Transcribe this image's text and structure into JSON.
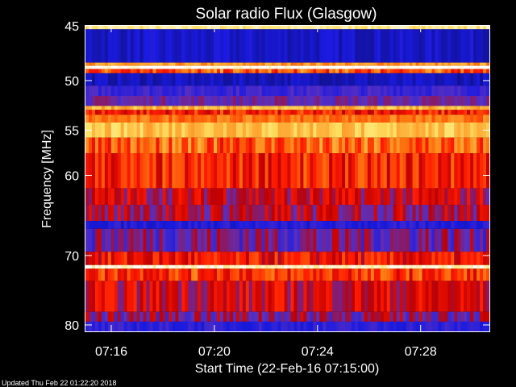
{
  "chart_data": {
    "type": "heatmap",
    "title": "Solar radio Flux (Glasgow)",
    "xlabel": "Start Time (22-Feb-16 07:15:00)",
    "ylabel": "Frequency [MHz]",
    "x_unit": "time",
    "x_range": [
      "07:15:00",
      "07:30:40"
    ],
    "x_ticks": [
      "07:16",
      "07:20",
      "07:24",
      "07:28"
    ],
    "y_range": [
      45,
      81
    ],
    "y_scale": "log",
    "y_inverted": true,
    "y_ticks": [
      45,
      50,
      55,
      60,
      70,
      80
    ],
    "colormap": [
      "#10108a",
      "#1a1ae0",
      "#5a30c0",
      "#c00000",
      "#ff1a00",
      "#ff7a10",
      "#ffe060",
      "#ffffff"
    ],
    "frequency_bands": [
      {
        "from": 45.0,
        "to": 45.3,
        "level": 0.9
      },
      {
        "from": 45.3,
        "to": 48.3,
        "level": 0.1
      },
      {
        "from": 48.3,
        "to": 48.6,
        "level": 0.75
      },
      {
        "from": 48.6,
        "to": 48.9,
        "level": 1.0
      },
      {
        "from": 48.9,
        "to": 49.3,
        "level": 0.65
      },
      {
        "from": 49.3,
        "to": 50.5,
        "level": 0.08
      },
      {
        "from": 50.5,
        "to": 51.5,
        "level": 0.22
      },
      {
        "from": 51.5,
        "to": 52.5,
        "level": 0.3
      },
      {
        "from": 52.5,
        "to": 52.9,
        "level": 0.8
      },
      {
        "from": 52.9,
        "to": 53.4,
        "level": 0.55
      },
      {
        "from": 53.4,
        "to": 54.2,
        "level": 0.7
      },
      {
        "from": 54.2,
        "to": 55.8,
        "level": 0.82
      },
      {
        "from": 55.8,
        "to": 57.5,
        "level": 0.66
      },
      {
        "from": 57.5,
        "to": 61.5,
        "level": 0.56
      },
      {
        "from": 61.5,
        "to": 63.5,
        "level": 0.44
      },
      {
        "from": 63.5,
        "to": 65.5,
        "level": 0.4
      },
      {
        "from": 65.5,
        "to": 66.5,
        "level": 0.16
      },
      {
        "from": 66.5,
        "to": 69.5,
        "level": 0.32
      },
      {
        "from": 69.5,
        "to": 71.3,
        "level": 0.52
      },
      {
        "from": 71.3,
        "to": 71.8,
        "level": 0.95
      },
      {
        "from": 71.8,
        "to": 73.5,
        "level": 0.6
      },
      {
        "from": 73.5,
        "to": 78.0,
        "level": 0.46
      },
      {
        "from": 78.0,
        "to": 79.5,
        "level": 0.35
      },
      {
        "from": 79.5,
        "to": 81.0,
        "level": 0.18
      }
    ]
  },
  "footer": {
    "updated": "Updated Thu Feb 22 01:22:20 2018"
  }
}
